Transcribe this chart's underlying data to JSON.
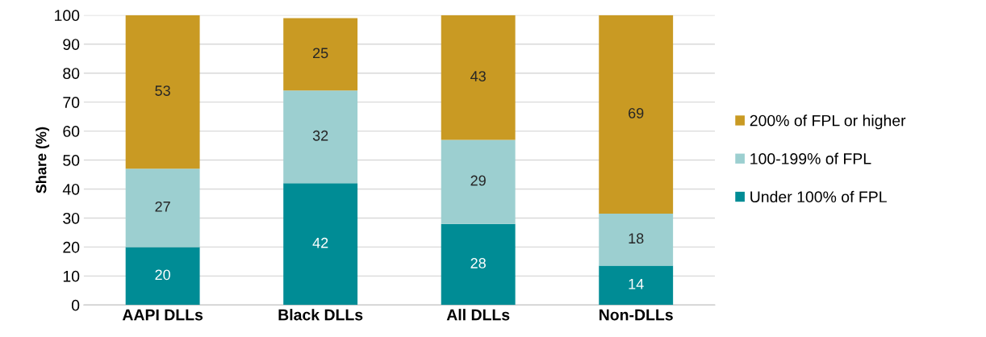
{
  "chart_data": {
    "type": "bar",
    "stacked": true,
    "ylabel": "Share (%)",
    "categories": [
      "AAPI DLLs",
      "Black DLLs",
      "All DLLs",
      "Non-DLLs"
    ],
    "series": [
      {
        "name": "Under 100% of FPL",
        "color": "#008c95",
        "values": [
          20,
          42,
          28,
          13.6
        ],
        "value_labels": [
          "20",
          "42",
          "28",
          "14"
        ]
      },
      {
        "name": "100-199% of FPL",
        "color": "#9ccfd0",
        "values": [
          27,
          32,
          29,
          17.9
        ],
        "value_labels": [
          "27",
          "32",
          "29",
          "18"
        ]
      },
      {
        "name": "200% of FPL or higher",
        "color": "#c99a23",
        "values": [
          53,
          25,
          43,
          68.5
        ],
        "value_labels": [
          "53",
          "25",
          "43",
          "69"
        ]
      }
    ],
    "ylim": [
      0,
      100
    ],
    "yticks": [
      0,
      10,
      20,
      30,
      40,
      50,
      60,
      70,
      80,
      90,
      100
    ],
    "grid": "y",
    "legend": "right"
  }
}
